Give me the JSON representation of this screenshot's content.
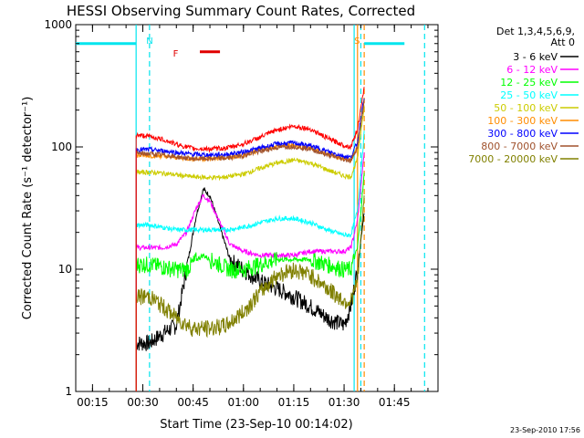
{
  "chart_data": {
    "type": "line",
    "title": "HESSI Observing Summary Count Rates, Corrected",
    "xlabel": "Start Time (23-Sep-10 00:14:02)",
    "ylabel": "Corrected Count Rate (s⁻¹ detector⁻¹)",
    "y_log": true,
    "ylim": [
      1,
      1000
    ],
    "xlim": [
      "00:10",
      "01:58"
    ],
    "x_ticks": [
      "00:15",
      "00:30",
      "00:45",
      "01:00",
      "01:15",
      "01:30",
      "01:45"
    ],
    "y_ticks": [
      "1",
      "10",
      "100",
      "1000"
    ],
    "legend_title": [
      "Det 1,3,4,5,6,9,",
      "Att 0"
    ],
    "legend_position": "right",
    "timestamp": "23-Sep-2010 17:56",
    "annotations": [
      {
        "text": "N",
        "x": "00:31",
        "color": "#00e5ee"
      },
      {
        "text": "S",
        "x": "01:33",
        "color": "#ff8c00"
      },
      {
        "text": "F",
        "x": "00:39",
        "color": "#e00000"
      }
    ],
    "spans": [
      {
        "name": "night-start",
        "x0": "00:10",
        "x1": "00:28",
        "level": 700,
        "color": "#00e5ee"
      },
      {
        "name": "night-end",
        "x0": "01:36",
        "x1": "01:48",
        "level": 700,
        "color": "#00e5ee"
      },
      {
        "name": "flare-flag",
        "x0": "00:47",
        "x1": "00:53",
        "level": 600,
        "color": "#e00000"
      }
    ],
    "vlines": [
      {
        "x": "00:28",
        "color": "#00e5ee",
        "style": "solid"
      },
      {
        "x": "00:32",
        "color": "#00e5ee",
        "style": "dashed"
      },
      {
        "x": "01:33",
        "color": "#00e5ee",
        "style": "solid"
      },
      {
        "x": "01:35",
        "color": "#00e5ee",
        "style": "dashed"
      },
      {
        "x": "01:34",
        "color": "#ff8c00",
        "style": "solid"
      },
      {
        "x": "01:36",
        "color": "#ff8c00",
        "style": "dashed"
      },
      {
        "x": "01:54",
        "color": "#00e5ee",
        "style": "dashed"
      }
    ],
    "series": [
      {
        "name": "3 - 6 keV",
        "color": "#000000",
        "x": [
          "00:28",
          "00:32",
          "00:36",
          "00:40",
          "00:43",
          "00:46",
          "00:48",
          "00:50",
          "00:53",
          "00:56",
          "01:00",
          "01:05",
          "01:10",
          "01:15",
          "01:20",
          "01:25",
          "01:30",
          "01:32",
          "01:34",
          "01:36"
        ],
        "y": [
          2.5,
          2.5,
          3,
          3.5,
          10,
          28,
          45,
          40,
          22,
          12,
          10,
          8,
          7,
          6,
          5,
          4,
          3.5,
          5,
          10,
          30
        ]
      },
      {
        "name": "6 - 12 keV",
        "color": "#ff00ff",
        "x": [
          "00:28",
          "00:32",
          "00:36",
          "00:40",
          "00:43",
          "00:46",
          "00:48",
          "00:50",
          "00:53",
          "00:56",
          "01:00",
          "01:05",
          "01:10",
          "01:15",
          "01:20",
          "01:25",
          "01:30",
          "01:32",
          "01:34",
          "01:36"
        ],
        "y": [
          15,
          15,
          15,
          16,
          20,
          32,
          40,
          36,
          24,
          16,
          14,
          13,
          13,
          13,
          14,
          14,
          14,
          15,
          25,
          90
        ]
      },
      {
        "name": "12 - 25 keV",
        "color": "#00ff00",
        "x": [
          "00:28",
          "00:32",
          "00:36",
          "00:40",
          "00:43",
          "00:46",
          "00:48",
          "00:50",
          "00:53",
          "00:56",
          "01:00",
          "01:05",
          "01:10",
          "01:15",
          "01:20",
          "01:25",
          "01:30",
          "01:32",
          "01:34",
          "01:36"
        ],
        "y": [
          11,
          11,
          10.5,
          10,
          10,
          12,
          13,
          12,
          11,
          10,
          10,
          11,
          12,
          12,
          12,
          11,
          10,
          10,
          15,
          60
        ]
      },
      {
        "name": "25 - 50 keV",
        "color": "#00ffff",
        "x": [
          "00:28",
          "00:32",
          "00:36",
          "00:40",
          "00:45",
          "00:50",
          "00:55",
          "01:00",
          "01:05",
          "01:10",
          "01:15",
          "01:20",
          "01:25",
          "01:30",
          "01:32",
          "01:34",
          "01:36"
        ],
        "y": [
          23,
          23,
          22,
          21,
          21,
          21,
          21,
          22,
          24,
          26,
          26,
          24,
          21,
          19,
          19,
          30,
          130
        ]
      },
      {
        "name": "50 - 100 keV",
        "color": "#cccc00",
        "x": [
          "00:28",
          "00:32",
          "00:36",
          "00:40",
          "00:45",
          "00:50",
          "00:55",
          "01:00",
          "01:05",
          "01:10",
          "01:15",
          "01:20",
          "01:25",
          "01:30",
          "01:32",
          "01:34",
          "01:36"
        ],
        "y": [
          62,
          62,
          61,
          59,
          57,
          56,
          57,
          60,
          67,
          74,
          78,
          74,
          65,
          58,
          57,
          80,
          220
        ]
      },
      {
        "name": "100 - 300 keV",
        "color": "#ff8c00",
        "x": [
          "00:28",
          "00:32",
          "00:36",
          "00:40",
          "00:45",
          "00:50",
          "00:55",
          "01:00",
          "01:05",
          "01:10",
          "01:15",
          "01:20",
          "01:25",
          "01:30",
          "01:32",
          "01:34",
          "01:36"
        ],
        "y": [
          85,
          85,
          84,
          82,
          80,
          80,
          81,
          85,
          94,
          101,
          103,
          98,
          88,
          80,
          78,
          100,
          240
        ]
      },
      {
        "name": "300 - 800 keV",
        "color": "#0000ff",
        "x": [
          "00:28",
          "00:32",
          "00:36",
          "00:40",
          "00:45",
          "00:50",
          "00:55",
          "01:00",
          "01:05",
          "01:10",
          "01:15",
          "01:20",
          "01:25",
          "01:30",
          "01:32",
          "01:34",
          "01:36"
        ],
        "y": [
          95,
          95,
          93,
          90,
          87,
          86,
          87,
          91,
          98,
          106,
          108,
          102,
          92,
          84,
          82,
          110,
          260
        ]
      },
      {
        "name": "800 - 7000 keV",
        "color": "#a0522d",
        "x": [
          "00:28",
          "00:32",
          "00:36",
          "00:40",
          "00:45",
          "00:50",
          "00:55",
          "01:00",
          "01:05",
          "01:10",
          "01:15",
          "01:20",
          "01:25",
          "01:30",
          "01:32",
          "01:34",
          "01:36"
        ],
        "y": [
          88,
          88,
          86,
          83,
          80,
          80,
          81,
          85,
          92,
          99,
          101,
          96,
          86,
          79,
          77,
          100,
          240
        ]
      },
      {
        "name": "7000 - 20000 keV",
        "color": "#808000",
        "x": [
          "00:28",
          "00:32",
          "00:36",
          "00:40",
          "00:45",
          "00:50",
          "00:55",
          "01:00",
          "01:05",
          "01:10",
          "01:15",
          "01:20",
          "01:25",
          "01:30",
          "01:32",
          "01:34",
          "01:36"
        ],
        "y": [
          6,
          6,
          5,
          4,
          3.3,
          3.3,
          3.5,
          4.5,
          6.5,
          9,
          10,
          9,
          7,
          5.5,
          5.5,
          8,
          40
        ]
      },
      {
        "name": "",
        "color": "#ff0000",
        "x": [
          "00:28",
          "00:32",
          "00:36",
          "00:40",
          "00:45",
          "00:50",
          "00:55",
          "01:00",
          "01:05",
          "01:10",
          "01:15",
          "01:20",
          "01:25",
          "01:30",
          "01:32",
          "01:34",
          "01:36"
        ],
        "y": [
          125,
          122,
          115,
          105,
          97,
          96,
          98,
          106,
          120,
          138,
          148,
          140,
          118,
          103,
          100,
          140,
          300
        ]
      }
    ]
  }
}
